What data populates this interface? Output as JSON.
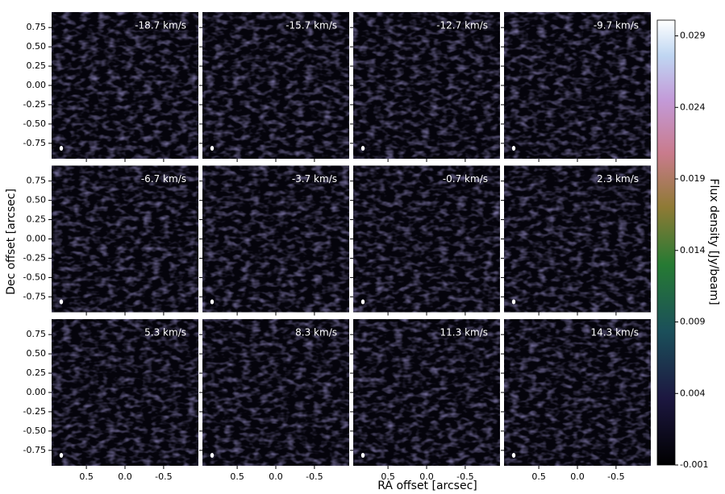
{
  "chart_data": {
    "type": "channelmap",
    "xlabel": "RA offset [arcsec]",
    "ylabel": "Dec offset [arcsec]",
    "colorbar_label": "Flux density [Jy/beam]",
    "panels": [
      "-18.7 km/s",
      "-15.7 km/s",
      "-12.7 km/s",
      "-9.7 km/s",
      "-6.7 km/s",
      "-3.7 km/s",
      "-0.7 km/s",
      "2.3 km/s",
      "5.3 km/s",
      "8.3 km/s",
      "11.3 km/s",
      "14.3 km/s"
    ],
    "columns": 4,
    "xlim": [
      0.95,
      -0.95
    ],
    "xticks": [
      0.5,
      {
        "value": 0,
        "label": "0.0"
      },
      -0.5
    ],
    "ylim": [
      -0.95,
      0.95
    ],
    "yticks": [
      0.75,
      {
        "value": 0.5,
        "label": "0.50"
      },
      0.25,
      {
        "value": 0,
        "label": "0.00"
      },
      -0.25,
      {
        "value": -0.5,
        "label": "-0.50"
      },
      -0.75
    ],
    "clim": [
      -0.001,
      0.0301
    ],
    "cticks": [
      -0.001,
      0.004,
      0.009,
      0.014,
      0.019,
      0.024,
      0.029
    ]
  }
}
